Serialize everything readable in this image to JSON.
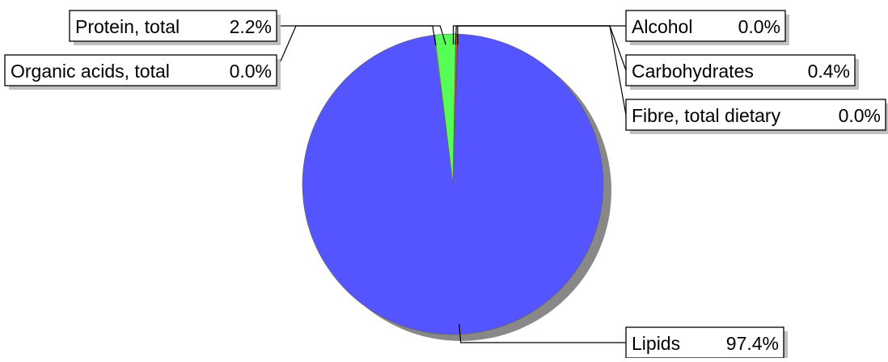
{
  "chart_data": {
    "type": "pie",
    "slices": [
      {
        "label": "Alcohol",
        "value_text": "0.0%",
        "value": 0.0,
        "color": "#ff5555"
      },
      {
        "label": "Carbohydrates",
        "value_text": "0.4%",
        "value": 0.4,
        "color": "#c05050"
      },
      {
        "label": "Fibre, total dietary",
        "value_text": "0.0%",
        "value": 0.0,
        "color": "#333333"
      },
      {
        "label": "Lipids",
        "value_text": "97.4%",
        "value": 97.4,
        "color": "#5555ff"
      },
      {
        "label": "Organic acids, total",
        "value_text": "0.0%",
        "value": 0.0,
        "color": "#cccccc"
      },
      {
        "label": "Protein, total",
        "value_text": "2.2%",
        "value": 2.2,
        "color": "#55ff55"
      }
    ],
    "shadow_color": "#888888",
    "edge_color": "#606060",
    "legend": "callout-labels"
  }
}
